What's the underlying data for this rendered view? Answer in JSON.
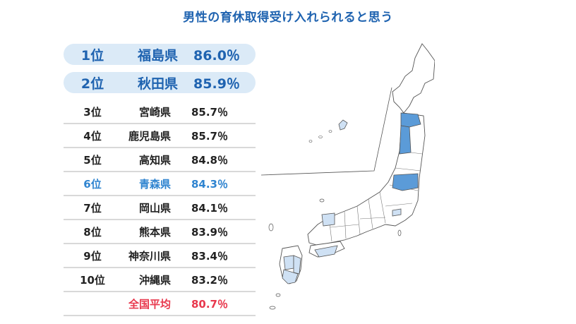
{
  "title": "男性の育休取得受け入れられると思う",
  "chart_data": {
    "type": "table",
    "title": "男性の育休取得受け入れられると思う",
    "rows": [
      {
        "rank": "1位",
        "prefecture": "福島県",
        "value": 86.0,
        "label": "86.0％"
      },
      {
        "rank": "2位",
        "prefecture": "秋田県",
        "value": 85.9,
        "label": "85.9％"
      },
      {
        "rank": "3位",
        "prefecture": "宮崎県",
        "value": 85.7,
        "label": "85.7％"
      },
      {
        "rank": "4位",
        "prefecture": "鹿児島県",
        "value": 85.7,
        "label": "85.7％"
      },
      {
        "rank": "5位",
        "prefecture": "高知県",
        "value": 84.8,
        "label": "84.8％"
      },
      {
        "rank": "6位",
        "prefecture": "青森県",
        "value": 84.3,
        "label": "84.3％"
      },
      {
        "rank": "7位",
        "prefecture": "岡山県",
        "value": 84.1,
        "label": "84.1％"
      },
      {
        "rank": "8位",
        "prefecture": "熊本県",
        "value": 83.9,
        "label": "83.9％"
      },
      {
        "rank": "9位",
        "prefecture": "神奈川県",
        "value": 83.4,
        "label": "83.4％"
      },
      {
        "rank": "10位",
        "prefecture": "沖縄県",
        "value": 83.2,
        "label": "83.2％"
      }
    ],
    "national_average": {
      "rank": "",
      "prefecture": "全国平均",
      "value": 80.7,
      "label": "80.7％"
    }
  },
  "colors": {
    "title": "#1f63b0",
    "top_highlight_bg": "#dbeaf7",
    "top_text": "#1f63b0",
    "sixth_text": "#2f84d0",
    "average_text": "#e8384d",
    "map_top": "#5b9bd8",
    "map_other": "#cfe1f4",
    "map_outline": "#555555"
  }
}
